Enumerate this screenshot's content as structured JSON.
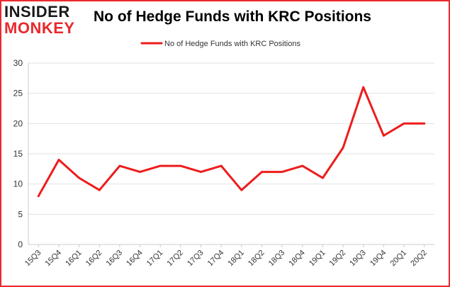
{
  "logo": {
    "top_text": "INSIDER",
    "bottom_text": "MONKEY",
    "top_color": "#1a1a1a",
    "bottom_color": "#e8292d"
  },
  "colors": {
    "series": "#ee1c1c",
    "border": "#e8292d",
    "grid": "#e3e3e3"
  },
  "chart_data": {
    "type": "line",
    "title": "No of Hedge Funds with KRC Positions",
    "xlabel": "",
    "ylabel": "",
    "ylim": [
      0,
      30
    ],
    "yticks": [
      0,
      5,
      10,
      15,
      20,
      25,
      30
    ],
    "grid": "horizontal",
    "legend_position": "top-center",
    "categories": [
      "15Q3",
      "15Q4",
      "16Q1",
      "16Q2",
      "16Q3",
      "16Q4",
      "17Q1",
      "17Q2",
      "17Q3",
      "17Q4",
      "18Q1",
      "18Q2",
      "18Q3",
      "18Q4",
      "19Q1",
      "19Q2",
      "19Q3",
      "19Q4",
      "20Q1",
      "20Q2"
    ],
    "series": [
      {
        "name": "No of Hedge Funds with KRC Positions",
        "values": [
          8,
          14,
          11,
          9,
          13,
          12,
          13,
          13,
          12,
          13,
          9,
          12,
          12,
          13,
          11,
          16,
          26,
          18,
          20,
          20
        ]
      }
    ]
  }
}
